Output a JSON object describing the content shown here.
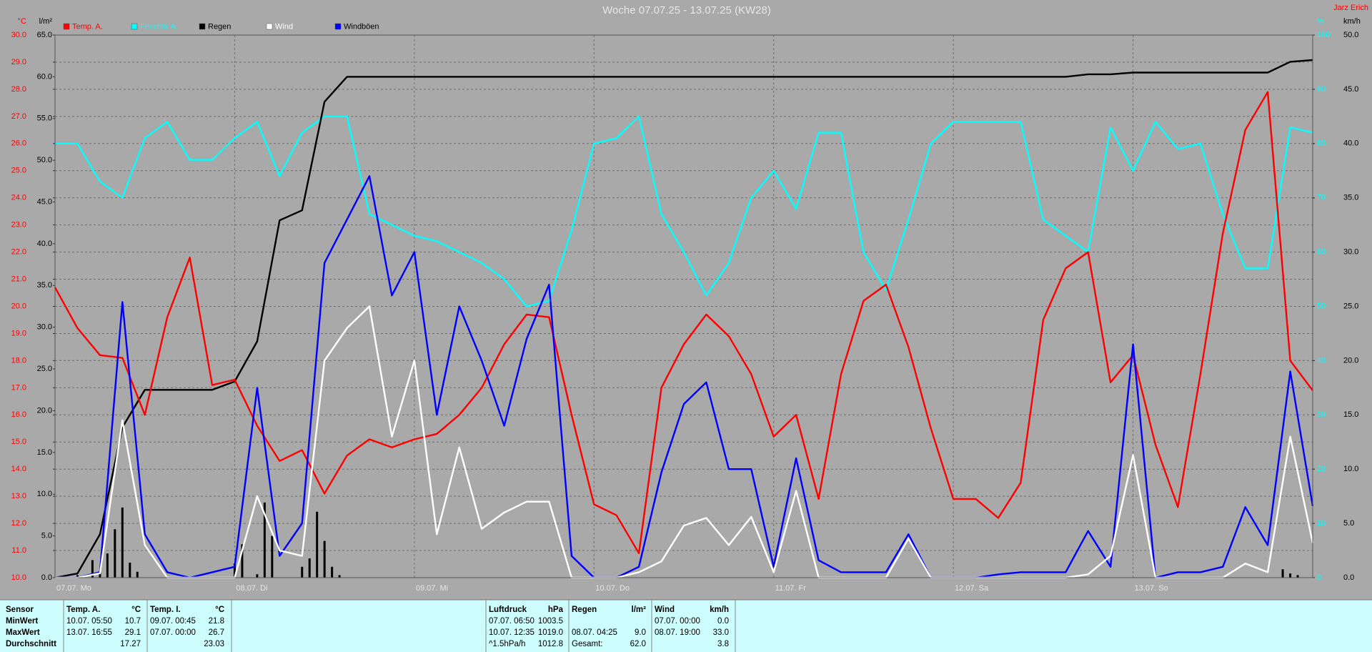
{
  "owner": "Jarz Erich",
  "chart_data": {
    "type": "line",
    "title": "Woche 07.07.25 - 13.07.25 (KW28)",
    "grid": true,
    "x": [
      0,
      3,
      6,
      9,
      12,
      15,
      18,
      21,
      24,
      27,
      30,
      33,
      36,
      39,
      42,
      45,
      48,
      51,
      54,
      57,
      60,
      63,
      66,
      69,
      72,
      75,
      78,
      81,
      84,
      87,
      90,
      93,
      96,
      99,
      102,
      105,
      108,
      111,
      114,
      117,
      120,
      123,
      126,
      129,
      132,
      135,
      138,
      141,
      144,
      147,
      150,
      153,
      156,
      159,
      162,
      165,
      168
    ],
    "xlim": [
      0,
      168
    ],
    "xticks": [
      {
        "value": 0,
        "label": "07.07. Mo"
      },
      {
        "value": 24,
        "label": "08.07. Di"
      },
      {
        "value": 48,
        "label": "09.07. Mi"
      },
      {
        "value": 72,
        "label": "10.07. Do"
      },
      {
        "value": 96,
        "label": "11.07. Fr"
      },
      {
        "value": 120,
        "label": "12.07. Sa"
      },
      {
        "value": 144,
        "label": "13.07. So"
      }
    ],
    "ylabel": "°C",
    "ylim": [
      10,
      30
    ],
    "yticks": [
      {
        "value": 10,
        "label": "10.0"
      },
      {
        "value": 11,
        "label": "11.0"
      },
      {
        "value": 12,
        "label": "12.0"
      },
      {
        "value": 13,
        "label": "13.0"
      },
      {
        "value": 14,
        "label": "14.0"
      },
      {
        "value": 15,
        "label": "15.0"
      },
      {
        "value": 16,
        "label": "16.0"
      },
      {
        "value": 17,
        "label": "17.0"
      },
      {
        "value": 18,
        "label": "18.0"
      },
      {
        "value": 19,
        "label": "19.0"
      },
      {
        "value": 20,
        "label": "20.0"
      },
      {
        "value": 21,
        "label": "21.0"
      },
      {
        "value": 22,
        "label": "22.0"
      },
      {
        "value": 23,
        "label": "23.0"
      },
      {
        "value": 24,
        "label": "24.0"
      },
      {
        "value": 25,
        "label": "25.0"
      },
      {
        "value": 26,
        "label": "26.0"
      },
      {
        "value": 27,
        "label": "27.0"
      },
      {
        "value": 28,
        "label": "28.0"
      },
      {
        "value": 29,
        "label": "29.0"
      },
      {
        "value": 30,
        "label": "30.0"
      }
    ],
    "y2label": "l/m²",
    "y2lim": [
      0,
      65
    ],
    "y2ticks": [
      {
        "value": 0,
        "label": "0.0"
      },
      {
        "value": 5,
        "label": "5.0"
      },
      {
        "value": 10,
        "label": "10.0"
      },
      {
        "value": 15,
        "label": "15.0"
      },
      {
        "value": 20,
        "label": "20.0"
      },
      {
        "value": 25,
        "label": "25.0"
      },
      {
        "value": 30,
        "label": "30.0"
      },
      {
        "value": 35,
        "label": "35.0"
      },
      {
        "value": 40,
        "label": "40.0"
      },
      {
        "value": 45,
        "label": "45.0"
      },
      {
        "value": 50,
        "label": "50.0"
      },
      {
        "value": 55,
        "label": "55.0"
      },
      {
        "value": 60,
        "label": "60.0"
      },
      {
        "value": 65,
        "label": "65.0"
      }
    ],
    "y3label": "%",
    "y3lim": [
      0,
      100
    ],
    "y3ticks": [
      0,
      10,
      20,
      30,
      40,
      50,
      60,
      70,
      80,
      90,
      100
    ],
    "y4label": "km/h",
    "y4lim": [
      0,
      50
    ],
    "y4ticks": [
      {
        "value": 0,
        "label": "0.0"
      },
      {
        "value": 5,
        "label": "5.0"
      },
      {
        "value": 10,
        "label": "10.0"
      },
      {
        "value": 15,
        "label": "15.0"
      },
      {
        "value": 20,
        "label": "20.0"
      },
      {
        "value": 25,
        "label": "25.0"
      },
      {
        "value": 30,
        "label": "30.0"
      },
      {
        "value": 35,
        "label": "35.0"
      },
      {
        "value": 40,
        "label": "40.0"
      },
      {
        "value": 45,
        "label": "45.0"
      },
      {
        "value": 50,
        "label": "50.0"
      }
    ],
    "series": [
      {
        "name": "Temp. A.",
        "color": "#ff0000",
        "axis": "y",
        "values": [
          20.7,
          19.2,
          18.2,
          18.1,
          16.0,
          19.6,
          21.8,
          17.1,
          17.3,
          15.6,
          14.3,
          14.7,
          13.1,
          14.5,
          15.1,
          14.8,
          15.1,
          15.3,
          16.0,
          17.0,
          18.6,
          19.7,
          19.6,
          16.0,
          12.7,
          12.3,
          10.9,
          17.0,
          18.6,
          19.7,
          18.9,
          17.5,
          15.2,
          16.0,
          12.9,
          17.5,
          20.2,
          20.8,
          18.5,
          15.5,
          12.9,
          12.9,
          12.2,
          13.5,
          19.5,
          21.4,
          22.0,
          17.2,
          18.2,
          14.9,
          12.6,
          17.5,
          22.7,
          26.5,
          27.9,
          18.0,
          16.9
        ]
      },
      {
        "name": "Feuchte A.",
        "color": "#00ffff",
        "axis": "y3",
        "values": [
          80,
          80,
          73,
          70,
          81,
          84,
          77,
          77,
          81,
          84,
          74,
          82,
          85,
          85,
          67,
          65,
          63,
          62,
          60,
          58,
          55,
          50,
          51,
          64,
          80,
          81,
          85,
          67,
          60,
          52,
          58,
          70,
          75,
          68,
          82,
          82,
          60,
          53,
          66,
          80,
          84,
          84,
          84,
          84,
          66,
          63,
          60,
          83,
          75,
          84,
          79,
          80,
          67,
          57,
          57,
          83,
          82
        ]
      },
      {
        "name": "Regen",
        "color": "#000000",
        "axis": "y2",
        "values": [
          0,
          0.5,
          5.2,
          18,
          22.5,
          22.5,
          22.5,
          22.5,
          23.5,
          28.3,
          42.8,
          44,
          57,
          60,
          60,
          60,
          60,
          60,
          60,
          60,
          60,
          60,
          60,
          60,
          60,
          60,
          60,
          60,
          60,
          60,
          60,
          60,
          60,
          60,
          60,
          60,
          60,
          60,
          60,
          60,
          60,
          60,
          60,
          60,
          60,
          60,
          60.3,
          60.3,
          60.5,
          60.5,
          60.5,
          60.5,
          60.5,
          60.5,
          60.5,
          61.8,
          62.0
        ],
        "bars": {
          "x": [
            3,
            5,
            6,
            7,
            8,
            9,
            10,
            11,
            24,
            25,
            27,
            28,
            29,
            33,
            34,
            35,
            36,
            37,
            38,
            164,
            165,
            166
          ],
          "values": [
            0.3,
            2.1,
            0.8,
            2.9,
            5.8,
            8.4,
            1.8,
            0.7,
            1.7,
            4.0,
            0.4,
            9.0,
            5.0,
            1.3,
            2.3,
            7.9,
            4.4,
            1.3,
            0.3,
            1.0,
            0.5,
            0.3
          ]
        }
      },
      {
        "name": "Wind",
        "color": "#ffffff",
        "axis": "y4",
        "values": [
          0,
          0,
          0.4,
          14.5,
          3,
          0,
          0,
          0,
          0,
          7.5,
          2.5,
          2,
          20,
          23,
          25,
          13,
          20,
          4,
          12,
          4.5,
          6,
          7,
          7,
          0,
          0,
          0,
          0.5,
          1.5,
          4.8,
          5.5,
          3,
          5.6,
          0.5,
          8,
          0,
          0,
          0,
          0,
          3.6,
          0,
          0,
          0,
          0,
          0,
          0,
          0,
          0.3,
          2,
          11.3,
          0,
          0,
          0,
          0,
          1.3,
          0.5,
          13,
          3.2
        ]
      },
      {
        "name": "Windböen",
        "color": "#0000ff",
        "axis": "y4",
        "values": [
          0,
          0,
          0.5,
          25.4,
          4,
          0.5,
          0,
          0.5,
          1,
          17.5,
          2,
          5,
          29,
          33,
          37,
          26,
          30,
          15,
          25,
          20,
          14,
          22,
          27,
          2,
          0,
          0,
          1,
          9.7,
          16,
          18,
          10,
          10,
          1,
          11,
          1.6,
          0.5,
          0.5,
          0.5,
          4,
          0,
          0,
          0,
          0.3,
          0.5,
          0.5,
          0.5,
          4.3,
          1,
          21.5,
          0,
          0.5,
          0.5,
          1,
          6.5,
          3,
          19,
          6.6
        ]
      }
    ]
  },
  "stats": {
    "row_labels": [
      "Sensor",
      "MinWert",
      "MaxWert",
      "Durchschnitt"
    ],
    "columns": [
      {
        "name": "Temp. A.",
        "unit": "°C",
        "min": {
          "time": "10.07. 05:50",
          "value": "10.7"
        },
        "max": {
          "time": "13.07. 16:55",
          "value": "29.1"
        },
        "avg": {
          "value": "17.27"
        }
      },
      {
        "name": "Temp. I.",
        "unit": "°C",
        "min": {
          "time": "09.07. 00:45",
          "value": "21.8"
        },
        "max": {
          "time": "07.07. 00:00",
          "value": "26.7"
        },
        "avg": {
          "value": "23.03"
        }
      },
      {
        "name": "Luftdruck",
        "unit": "hPa",
        "min": {
          "time": "07.07. 06:50",
          "value": "1003.5"
        },
        "max": {
          "time": "10.07. 12:35",
          "value": "1019.0"
        },
        "avg": {
          "time": "^1.5hPa/h",
          "value": "1012.8"
        }
      },
      {
        "name": "Regen",
        "unit": "l/m²",
        "max": {
          "time": "08.07. 04:25",
          "value": "9.0"
        },
        "avg": {
          "time": "Gesamt:",
          "value": "62.0"
        }
      },
      {
        "name": "Wind",
        "unit": "km/h",
        "min": {
          "time": "07.07. 00:00",
          "value": "0.0"
        },
        "max": {
          "time": "08.07. 19:00",
          "value": "33.0"
        },
        "avg": {
          "value": "3.8"
        }
      }
    ]
  }
}
